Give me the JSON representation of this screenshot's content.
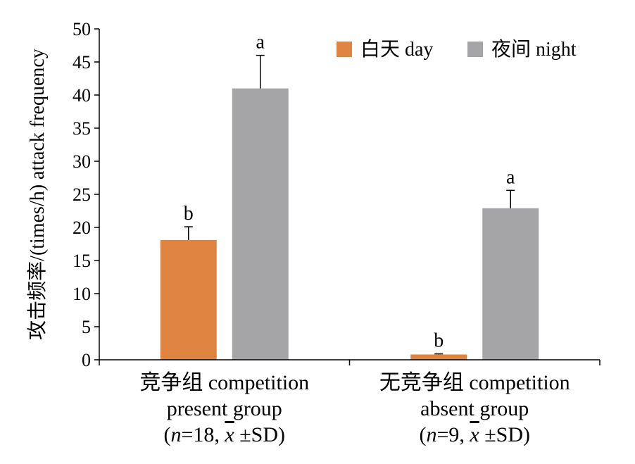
{
  "chart_data": {
    "type": "bar",
    "ylabel": "攻击频率/(times/h) attack frequency",
    "ylim": [
      0,
      50
    ],
    "yticks": [
      0,
      5,
      10,
      15,
      20,
      25,
      30,
      35,
      40,
      45,
      50
    ],
    "legend_position": "top-right",
    "grid": false,
    "groups": [
      {
        "label_lines": [
          "竞争组 competition",
          "present group",
          "(n=18, x̄ ±SD)"
        ],
        "n_label": "n",
        "n_value": "18",
        "stat_label": "±SD"
      },
      {
        "label_lines": [
          "无竞争组 competition",
          "absent group",
          "(n=9, x̄ ±SD)"
        ],
        "n_label": "n",
        "n_value": "9",
        "stat_label": "±SD"
      }
    ],
    "series": [
      {
        "name": "白天 day",
        "color": "#E08442",
        "values": [
          18.1,
          0.8
        ],
        "errors": [
          2.0,
          0.1
        ],
        "letters": [
          "b",
          "b"
        ]
      },
      {
        "name": "夜间 night",
        "color": "#A5A5A8",
        "values": [
          41.0,
          22.9
        ],
        "errors": [
          5.0,
          2.7
        ],
        "letters": [
          "a",
          "a"
        ]
      }
    ]
  }
}
